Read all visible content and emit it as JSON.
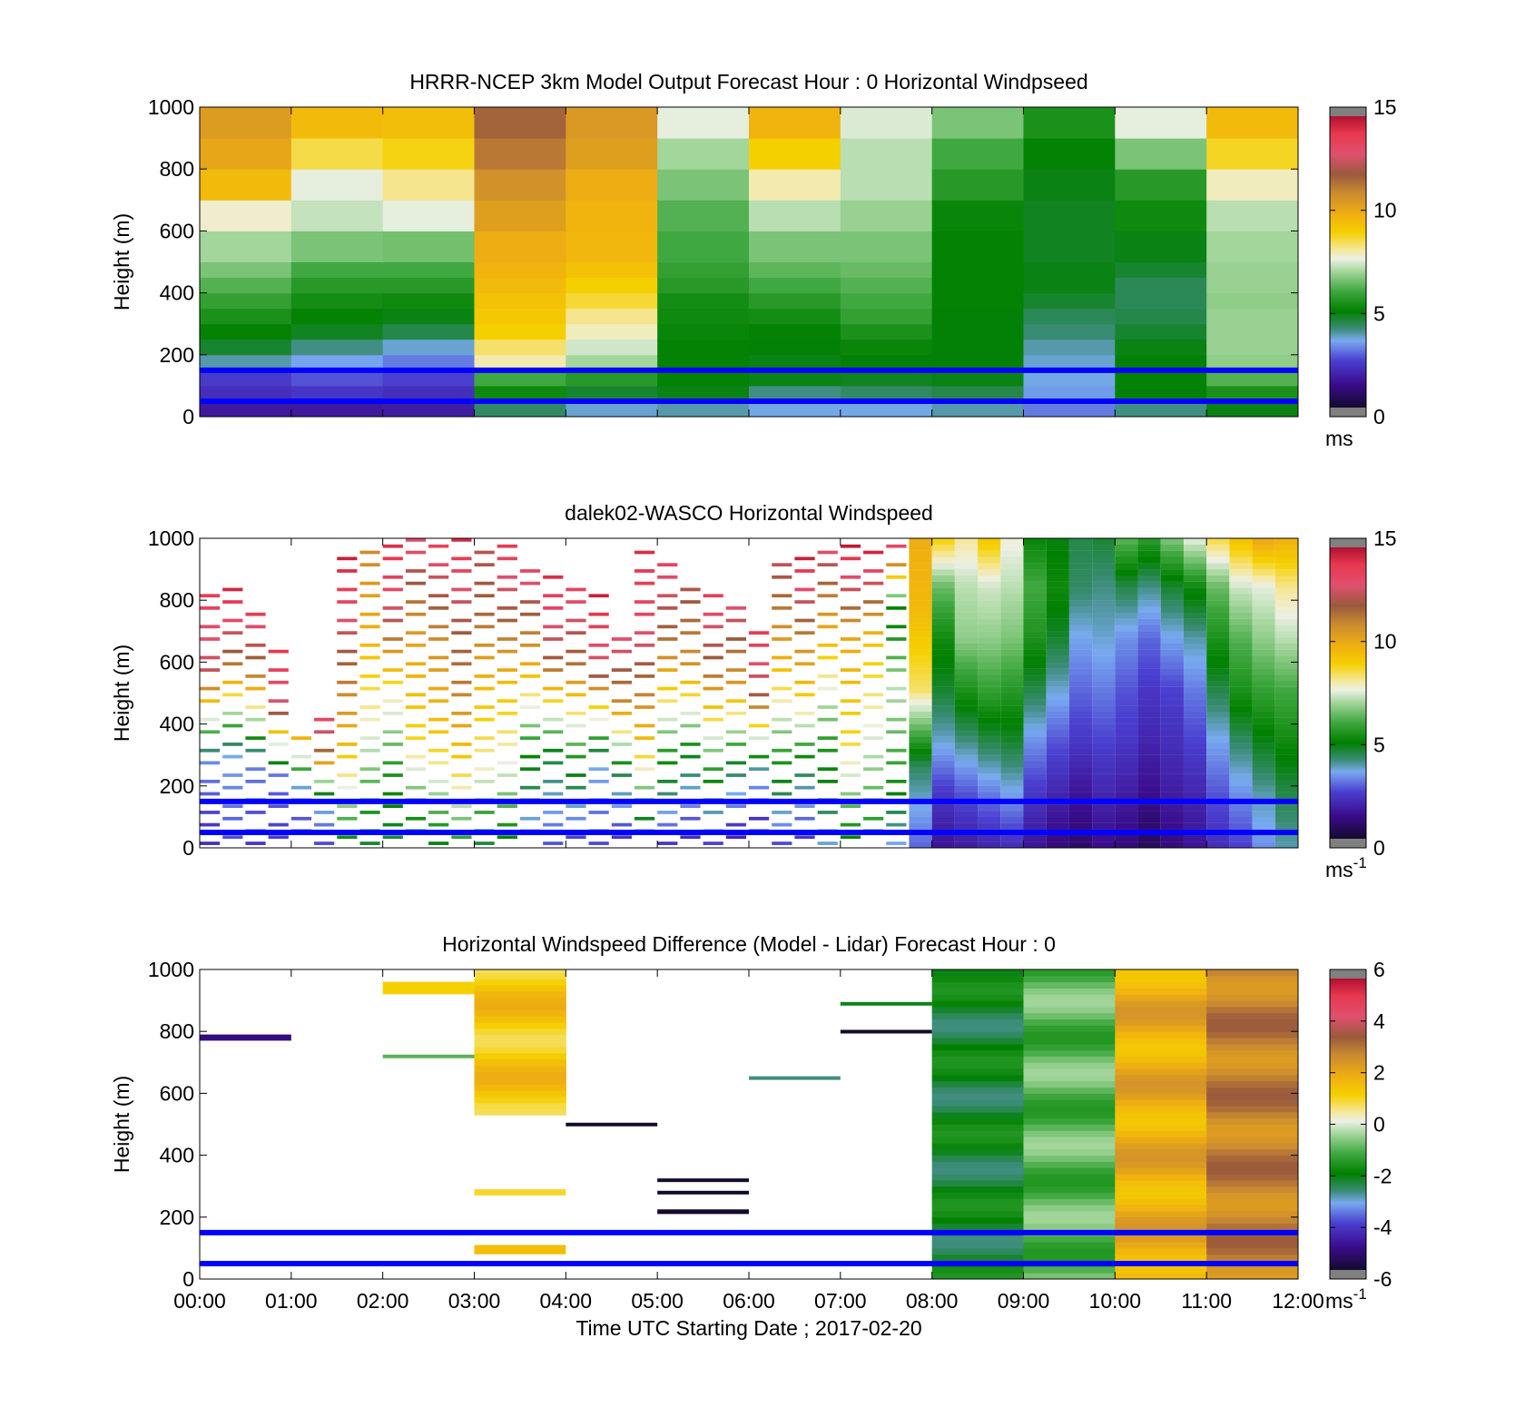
{
  "figure": {
    "xlabel": "Time UTC  Starting Date ; 2017-02-20"
  },
  "chart_data": [
    {
      "type": "heatmap",
      "title": "HRRR-NCEP 3km Model Output   Forecast Hour : 0 Horizontal Windpseed",
      "ylabel": "Height (m)",
      "ylim": [
        0,
        1000
      ],
      "yticks": [
        "0",
        "200",
        "400",
        "600",
        "800",
        "1000"
      ],
      "xlim": [
        0,
        12
      ],
      "x_tick_labels_shown": false,
      "colorbar": {
        "min": 0,
        "max": 15,
        "ticks": [
          "0",
          "5",
          "10",
          "15"
        ],
        "unit": "ms",
        "unit_sup": ""
      },
      "height_bands": [
        0,
        50,
        100,
        150,
        200,
        250,
        300,
        350,
        400,
        450,
        500,
        600,
        700,
        800,
        900,
        1000
      ],
      "columns": [
        {
          "x": 0,
          "speeds": [
            1.5,
            2.0,
            2.3,
            3.8,
            4.6,
            5.0,
            5.4,
            5.8,
            6.2,
            6.6,
            7.0,
            7.8,
            9.6,
            10.2,
            10.5
          ]
        },
        {
          "x": 1,
          "speeds": [
            1.5,
            2.2,
            2.6,
            3.4,
            4.0,
            4.7,
            5.0,
            5.3,
            5.6,
            6.0,
            6.6,
            7.3,
            7.6,
            8.6,
            9.6
          ]
        },
        {
          "x": 2,
          "speeds": [
            1.6,
            2.0,
            2.4,
            3.0,
            3.6,
            4.4,
            4.8,
            5.2,
            5.6,
            6.0,
            6.5,
            7.6,
            8.2,
            8.9,
            9.5
          ]
        },
        {
          "x": 3,
          "speeds": [
            4.2,
            5.2,
            6.0,
            8.0,
            8.4,
            9.0,
            9.2,
            9.4,
            9.6,
            9.8,
            10.0,
            10.4,
            10.8,
            11.4,
            11.8
          ]
        },
        {
          "x": 4,
          "speeds": [
            3.6,
            4.6,
            5.6,
            7.0,
            7.4,
            7.9,
            8.2,
            8.7,
            9.0,
            9.4,
            9.7,
            9.8,
            10.0,
            10.4,
            10.6
          ]
        },
        {
          "x": 5,
          "speeds": [
            3.8,
            4.8,
            5.0,
            5.0,
            5.0,
            5.1,
            5.2,
            5.3,
            5.6,
            5.8,
            6.0,
            6.2,
            6.6,
            7.0,
            7.6
          ]
        },
        {
          "x": 6,
          "speeds": [
            3.5,
            4.0,
            4.8,
            4.8,
            4.9,
            5.0,
            5.3,
            5.6,
            6.0,
            6.3,
            6.6,
            7.2,
            8.0,
            9.0,
            9.8
          ]
        },
        {
          "x": 7,
          "speeds": [
            3.5,
            4.2,
            4.7,
            4.9,
            5.1,
            5.4,
            5.8,
            6.0,
            6.2,
            6.4,
            6.6,
            6.9,
            7.2,
            7.2,
            7.5
          ]
        },
        {
          "x": 8,
          "speeds": [
            3.8,
            4.4,
            4.8,
            4.9,
            4.9,
            4.9,
            4.9,
            5.0,
            5.0,
            5.0,
            5.0,
            5.1,
            5.6,
            6.0,
            6.6
          ]
        },
        {
          "x": 9,
          "speeds": [
            3.0,
            3.3,
            3.5,
            3.6,
            3.8,
            4.1,
            4.3,
            4.6,
            4.8,
            4.8,
            4.7,
            4.7,
            4.8,
            5.0,
            5.4
          ]
        },
        {
          "x": 10,
          "speeds": [
            4.0,
            4.9,
            5.0,
            4.9,
            4.8,
            4.6,
            4.4,
            4.3,
            4.3,
            4.6,
            4.8,
            5.2,
            5.6,
            6.6,
            7.6
          ]
        },
        {
          "x": 11,
          "speeds": [
            4.8,
            5.4,
            6.2,
            6.8,
            6.9,
            6.9,
            6.9,
            6.8,
            6.9,
            6.9,
            7.0,
            7.2,
            7.9,
            8.8,
            9.6
          ]
        }
      ],
      "reference_lines": [
        {
          "height": 150,
          "color": "#0000ff"
        },
        {
          "height": 50,
          "color": "#0000ff"
        }
      ]
    },
    {
      "type": "heatmap",
      "title": "dalek02-WASCO  Horizontal Windspeed",
      "ylabel": "Height (m)",
      "ylim": [
        0,
        1000
      ],
      "yticks": [
        "0",
        "200",
        "400",
        "600",
        "800",
        "1000"
      ],
      "xlim": [
        0,
        12
      ],
      "x_tick_labels_shown": false,
      "colorbar": {
        "min": 0,
        "max": 15,
        "ticks": [
          "0",
          "5",
          "10",
          "15"
        ],
        "unit": "ms",
        "unit_sup": "-1"
      },
      "column_width_hours": 0.25,
      "columns": [
        {
          "x": 0.0,
          "top": 820,
          "speeds": [
            2.0,
            3.2,
            12.5,
            14.0
          ]
        },
        {
          "x": 0.25,
          "top": 880,
          "speeds": [
            2.5,
            3.5,
            11.6,
            15.2
          ]
        },
        {
          "x": 0.5,
          "top": 800,
          "speeds": [
            2.2,
            3.1,
            11.0,
            14.6
          ]
        },
        {
          "x": 0.75,
          "top": 650,
          "speeds": [
            2.3,
            2.8,
            12.8,
            14.2
          ]
        },
        {
          "x": 1.0,
          "top": 350,
          "speeds": [
            2.0,
            3.4,
            10.2
          ]
        },
        {
          "x": 1.25,
          "top": 420,
          "speeds": [
            2.5,
            3.6,
            11.4,
            13.8
          ]
        },
        {
          "x": 1.5,
          "top": 940,
          "speeds": [
            5.0,
            9.6,
            12.2,
            14.8
          ]
        },
        {
          "x": 1.75,
          "top": 990,
          "speeds": [
            4.6,
            7.4,
            9.8,
            11.2
          ]
        },
        {
          "x": 2.0,
          "top": 970,
          "speeds": [
            4.4,
            5.5,
            8.2,
            12.6,
            14.4
          ]
        },
        {
          "x": 2.25,
          "top": 1000,
          "speeds": [
            4.2,
            8.8,
            10.4,
            13.5
          ]
        },
        {
          "x": 2.5,
          "top": 1000,
          "speeds": [
            4.8,
            9.2,
            11.0,
            14.0
          ]
        },
        {
          "x": 2.75,
          "top": 1000,
          "speeds": [
            5.5,
            9.0,
            11.3,
            12.4,
            14.6
          ]
        },
        {
          "x": 3.0,
          "top": 1000,
          "speeds": [
            4.5,
            8.0,
            9.6,
            11.8,
            12.6
          ]
        },
        {
          "x": 3.25,
          "top": 1000,
          "speeds": [
            4.8,
            7.6,
            9.4,
            12.2,
            14.2
          ]
        },
        {
          "x": 3.5,
          "top": 900,
          "speeds": [
            3.0,
            5.2,
            10.4,
            13.6
          ]
        },
        {
          "x": 3.75,
          "top": 880,
          "speeds": [
            2.6,
            4.6,
            12.0,
            14.5
          ]
        },
        {
          "x": 4.0,
          "top": 860,
          "speeds": [
            2.2,
            5.6,
            11.5,
            13.9
          ]
        },
        {
          "x": 4.25,
          "top": 820,
          "speeds": [
            2.5,
            3.6,
            12.4,
            14.8
          ]
        },
        {
          "x": 4.5,
          "top": 680,
          "speeds": [
            2.0,
            4.4,
            11.0,
            13.4
          ]
        },
        {
          "x": 4.75,
          "top": 950,
          "speeds": [
            3.1,
            9.4,
            12.8,
            14.4
          ]
        },
        {
          "x": 5.0,
          "top": 930,
          "speeds": [
            2.2,
            5.8,
            11.2,
            13.8
          ]
        },
        {
          "x": 5.25,
          "top": 870,
          "speeds": [
            1.8,
            4.8,
            10.8,
            12.6
          ]
        },
        {
          "x": 5.5,
          "top": 830,
          "speeds": [
            2.4,
            6.2,
            11.6,
            14.0
          ]
        },
        {
          "x": 5.75,
          "top": 780,
          "speeds": [
            1.6,
            4.6,
            10.6,
            13.2
          ]
        },
        {
          "x": 6.0,
          "top": 700,
          "speeds": [
            1.4,
            3.6,
            12.0,
            14.2
          ]
        },
        {
          "x": 6.25,
          "top": 930,
          "speeds": [
            2.5,
            6.0,
            10.2,
            12.8
          ]
        },
        {
          "x": 6.5,
          "top": 960,
          "speeds": [
            2.0,
            4.4,
            9.2,
            11.8,
            15.2
          ]
        },
        {
          "x": 6.75,
          "top": 980,
          "speeds": [
            3.6,
            5.6,
            9.6,
            13.4
          ]
        },
        {
          "x": 7.0,
          "top": 1000,
          "speeds": [
            4.8,
            8.8,
            10.2,
            15.4
          ]
        },
        {
          "x": 7.25,
          "top": 980,
          "speeds": [
            5.2,
            7.4,
            9.4,
            15.2
          ]
        },
        {
          "x": 7.5,
          "top": 1000,
          "speeds": [
            3.4,
            5.8,
            7.2,
            4.6,
            15.0
          ]
        },
        {
          "x": 7.75,
          "top": 1000,
          "speeds": [
            2.8,
            4.2,
            8.4,
            9.6,
            10.0
          ]
        },
        {
          "x": 8.0,
          "top": 1000,
          "speeds": [
            1.4,
            2.2,
            3.6,
            4.6,
            5.2,
            6.4,
            9.2
          ]
        },
        {
          "x": 8.25,
          "top": 1000,
          "speeds": [
            1.6,
            2.6,
            4.0,
            5.4,
            6.8,
            7.2,
            8.2
          ]
        },
        {
          "x": 8.5,
          "top": 1000,
          "speeds": [
            1.8,
            3.0,
            4.4,
            5.8,
            6.8,
            7.4,
            9.4
          ]
        },
        {
          "x": 8.75,
          "top": 1000,
          "speeds": [
            2.0,
            3.4,
            4.6,
            5.6,
            6.6,
            7.2,
            7.8
          ]
        },
        {
          "x": 9.0,
          "top": 1000,
          "speeds": [
            1.4,
            2.2,
            3.2,
            4.4,
            5.4,
            6.0,
            5.0
          ]
        },
        {
          "x": 9.25,
          "top": 1000,
          "speeds": [
            1.0,
            1.8,
            2.6,
            3.6,
            4.6,
            5.2,
            4.8
          ]
        },
        {
          "x": 9.5,
          "top": 1000,
          "speeds": [
            0.8,
            1.4,
            2.2,
            2.8,
            3.4,
            4.2,
            4.4
          ]
        },
        {
          "x": 9.75,
          "top": 1000,
          "speeds": [
            1.2,
            1.8,
            2.4,
            3.0,
            3.6,
            4.0,
            4.6
          ]
        },
        {
          "x": 10.0,
          "top": 1000,
          "speeds": [
            1.0,
            1.6,
            2.2,
            2.6,
            3.2,
            4.4,
            6.4
          ]
        },
        {
          "x": 10.25,
          "top": 1000,
          "speeds": [
            0.6,
            1.2,
            1.8,
            2.2,
            2.8,
            4.0,
            5.8
          ]
        },
        {
          "x": 10.5,
          "top": 1000,
          "speeds": [
            1.0,
            1.6,
            2.0,
            2.4,
            3.4,
            4.6,
            6.8
          ]
        },
        {
          "x": 10.75,
          "top": 1000,
          "speeds": [
            1.4,
            1.8,
            2.4,
            3.0,
            3.8,
            5.2,
            7.8
          ]
        },
        {
          "x": 11.0,
          "top": 1000,
          "speeds": [
            2.0,
            2.6,
            3.4,
            4.4,
            5.4,
            6.4,
            8.8
          ]
        },
        {
          "x": 11.25,
          "top": 1000,
          "speeds": [
            2.4,
            3.2,
            4.2,
            5.4,
            6.2,
            7.4,
            9.6
          ]
        },
        {
          "x": 11.5,
          "top": 1000,
          "speeds": [
            3.2,
            3.8,
            4.8,
            5.8,
            6.8,
            7.6,
            10.4
          ]
        },
        {
          "x": 11.75,
          "top": 1000,
          "speeds": [
            3.8,
            4.4,
            5.2,
            6.0,
            7.2,
            8.2,
            10.0
          ]
        }
      ],
      "reference_lines": [
        {
          "height": 150,
          "color": "#0000ff"
        },
        {
          "height": 50,
          "color": "#0000ff"
        }
      ]
    },
    {
      "type": "heatmap",
      "title": "Horizontal Windspeed Difference (Model - Lidar) Forecast Hour : 0",
      "ylabel": "Height (m)",
      "xlabel": "Time UTC  Starting Date ; 2017-02-20",
      "ylim": [
        0,
        1000
      ],
      "yticks": [
        "0",
        "200",
        "400",
        "600",
        "800",
        "1000"
      ],
      "xlim": [
        0,
        12
      ],
      "xticks": [
        "00:00",
        "01:00",
        "02:00",
        "03:00",
        "04:00",
        "05:00",
        "06:00",
        "07:00",
        "08:00",
        "09:00",
        "10:00",
        "11:00",
        "12:00"
      ],
      "colorbar": {
        "min": -6,
        "max": 6,
        "ticks": [
          "-6",
          "-4",
          "-2",
          "0",
          "2",
          "4",
          "6"
        ],
        "unit": "ms",
        "unit_sup": "-1"
      },
      "segments": [
        {
          "x0": 0,
          "x1": 1,
          "y0": 770,
          "y1": 790,
          "diff": -5.2
        },
        {
          "x0": 2,
          "x1": 3,
          "y0": 920,
          "y1": 960,
          "diff": 1.2
        },
        {
          "x0": 2,
          "x1": 3,
          "y0": 715,
          "y1": 725,
          "diff": -1.0
        },
        {
          "x0": 3,
          "x1": 4,
          "y0": 530,
          "y1": 1000,
          "diff": 1.4
        },
        {
          "x0": 3,
          "x1": 4,
          "y0": 270,
          "y1": 290,
          "diff": 1.0
        },
        {
          "x0": 3,
          "x1": 4,
          "y0": 80,
          "y1": 110,
          "diff": 1.6
        },
        {
          "x0": 4,
          "x1": 5,
          "y0": 495,
          "y1": 505,
          "diff": -6.0
        },
        {
          "x0": 5,
          "x1": 6,
          "y0": 315,
          "y1": 325,
          "diff": -6.0
        },
        {
          "x0": 5,
          "x1": 6,
          "y0": 275,
          "y1": 285,
          "diff": -6.0
        },
        {
          "x0": 5,
          "x1": 6,
          "y0": 210,
          "y1": 225,
          "diff": -6.0
        },
        {
          "x0": 6,
          "x1": 7,
          "y0": 645,
          "y1": 655,
          "diff": -2.8
        },
        {
          "x0": 7,
          "x1": 8,
          "y0": 885,
          "y1": 895,
          "diff": -2.2
        },
        {
          "x0": 7,
          "x1": 8,
          "y0": 795,
          "y1": 805,
          "diff": -6.0
        },
        {
          "x0": 8,
          "x1": 9,
          "y0": 0,
          "y1": 1000,
          "diff": -2.2
        },
        {
          "x0": 9,
          "x1": 10,
          "y0": 0,
          "y1": 1000,
          "diff": -1.0
        },
        {
          "x0": 10,
          "x1": 11,
          "y0": 0,
          "y1": 1000,
          "diff": 2.0
        },
        {
          "x0": 11,
          "x1": 12,
          "y0": 0,
          "y1": 1000,
          "diff": 3.0
        }
      ],
      "reference_lines": [
        {
          "height": 150,
          "color": "#0000ff"
        },
        {
          "height": 50,
          "color": "#0000ff"
        }
      ]
    }
  ]
}
